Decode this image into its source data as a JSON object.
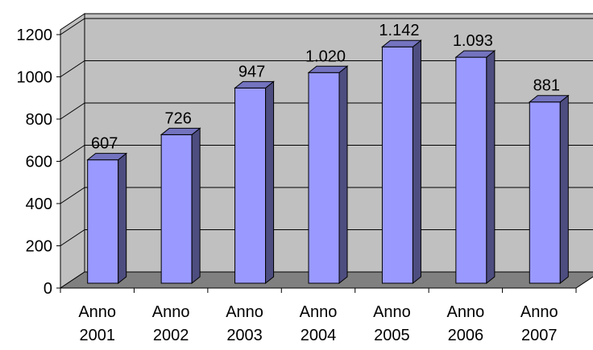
{
  "chart_data": {
    "type": "bar",
    "title": "",
    "xlabel": "",
    "ylabel": "",
    "categories": [
      [
        "Anno",
        "2001"
      ],
      [
        "Anno",
        "2002"
      ],
      [
        "Anno",
        "2003"
      ],
      [
        "Anno",
        "2004"
      ],
      [
        "Anno",
        "2005"
      ],
      [
        "Anno",
        "2006"
      ],
      [
        "Anno",
        "2007"
      ]
    ],
    "values": [
      607,
      726,
      947,
      1020,
      1142,
      1093,
      881
    ],
    "value_labels": [
      "607",
      "726",
      "947",
      "1.020",
      "1.142",
      "1.093",
      "881"
    ],
    "ylim": [
      0,
      1200
    ],
    "yticks": [
      0,
      200,
      400,
      600,
      800,
      1000,
      1200
    ],
    "ytick_labels": [
      "0",
      "200",
      "400",
      "600",
      "800",
      "1000",
      "1200"
    ],
    "grid": true,
    "legend": "none",
    "style": "3d-column",
    "colors": {
      "bar_front": "#9999ff",
      "bar_side": "#4d4d80",
      "bar_top": "#7373bf",
      "wall": "#c0c0c0",
      "floor": "#808080",
      "gridline": "#000000"
    }
  }
}
